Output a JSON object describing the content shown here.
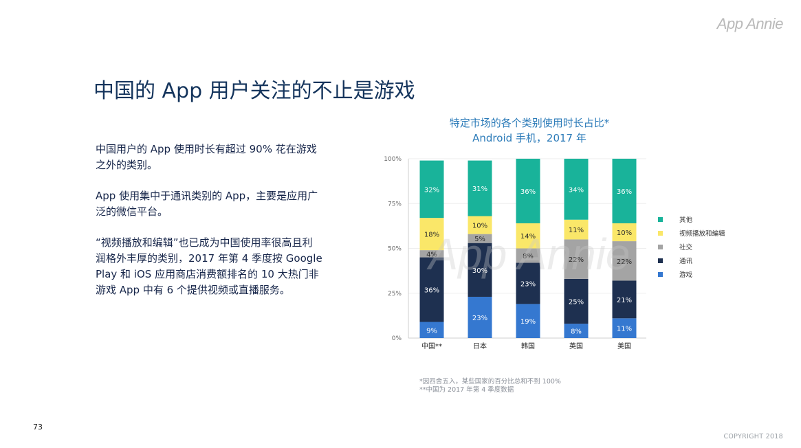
{
  "logo": "App Annie",
  "page_title": "中国的 App 用户关注的不止是游戏",
  "paragraphs": [
    "中国用户的 App 使用时长有超过 90% 花在游戏之外的类别。",
    "App 使用集中于通讯类别的 App，主要是应用广泛的微信平台。",
    "“视频播放和编辑”也已成为中国使用率很高且利润格外丰厚的类别，2017 年第 4 季度按 Google Play 和 iOS 应用商店消费额排名的 10 大热门非游戏 App 中有 6 个提供视频或直播服务。"
  ],
  "chart_data": {
    "type": "bar",
    "stacked": true,
    "title": "特定市场的各个类别使用时长占比*",
    "subtitle": "Android 手机，2017 年",
    "categories": [
      "中国**",
      "日本",
      "韩国",
      "英国",
      "美国"
    ],
    "ylim": [
      0,
      100
    ],
    "yticks": [
      "0%",
      "25%",
      "50%",
      "75%",
      "100%"
    ],
    "ytick_values": [
      0,
      25,
      50,
      75,
      100
    ],
    "legend_position": "right",
    "series": [
      {
        "name": "游戏",
        "color": "#3578d0",
        "values": [
          9,
          23,
          19,
          8,
          11
        ],
        "labels": [
          "9%",
          "23%",
          "19%",
          "8%",
          "11%"
        ]
      },
      {
        "name": "通讯",
        "color": "#1e3050",
        "values": [
          36,
          30,
          23,
          25,
          21
        ],
        "labels": [
          "36%",
          "30%",
          "23%",
          "25%",
          "21%"
        ]
      },
      {
        "name": "社交",
        "color": "#a4a4a4",
        "values": [
          4,
          5,
          8,
          22,
          22
        ],
        "labels": [
          "4%",
          "5%",
          "8%",
          "22%",
          "22%"
        ]
      },
      {
        "name": "视频播放和编辑",
        "color": "#fae769",
        "values": [
          18,
          10,
          14,
          11,
          10
        ],
        "labels": [
          "18%",
          "10%",
          "14%",
          "11%",
          "10%"
        ]
      },
      {
        "name": "其他",
        "color": "#19b39a",
        "values": [
          32,
          31,
          36,
          34,
          36
        ],
        "labels": [
          "32%",
          "31%",
          "36%",
          "34%",
          "36%"
        ]
      }
    ],
    "legend_order": [
      "其他",
      "视频播放和编辑",
      "社交",
      "通讯",
      "游戏"
    ],
    "watermark": "App Annie"
  },
  "footnotes": [
    "*因四舍五入，某些国家的百分比总和不到 100%",
    "**中国为 2017 年第 4 季度数据"
  ],
  "page_number": "73",
  "copyright": "COPYRIGHT 2018"
}
